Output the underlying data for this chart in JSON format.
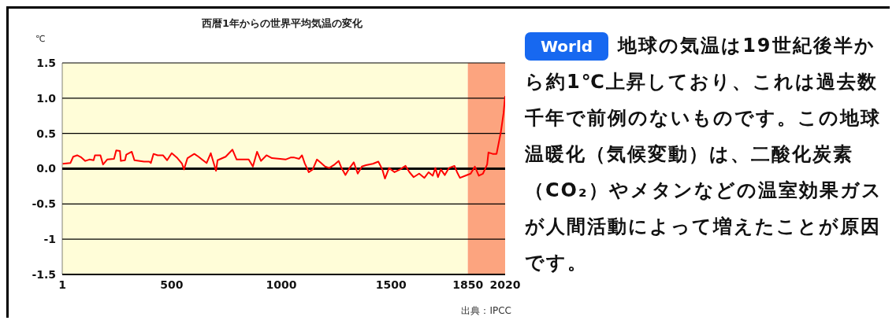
{
  "chart_data": [
    {
      "type": "line",
      "title": "西暦1年からの世界平均気温の変化",
      "ylabel": "℃",
      "xlim": [
        1,
        2020
      ],
      "xticks": [
        1,
        500,
        1000,
        1500,
        1850,
        2020
      ],
      "ylim": [
        -1.5,
        1.5
      ],
      "yticks": [
        {
          "value": -1.5,
          "label": "-1.5"
        },
        {
          "value": -1,
          "label": "-1"
        },
        {
          "value": -0.5,
          "label": "-0.5"
        },
        {
          "value": 0,
          "label": "0.0"
        },
        {
          "value": 0.5,
          "label": "0.5"
        },
        {
          "value": 1,
          "label": "1.0"
        },
        {
          "value": 1.5,
          "label": "1.5"
        }
      ],
      "grid": "y",
      "marker": "none",
      "line_style": "solid",
      "bands": [
        {
          "axis": "x",
          "from": 1,
          "to": 1850,
          "color": "#fffdd8"
        },
        {
          "axis": "x",
          "from": 1850,
          "to": 2020,
          "color": "#fca47f"
        }
      ],
      "ref_lines": [
        {
          "axis": "y",
          "value": 0,
          "color": "#000000"
        }
      ],
      "annotations": [
        "出典：IPCC"
      ],
      "series": [
        {
          "color": "#ff0000",
          "x": [
            3,
            38,
            51,
            69,
            88,
            106,
            125,
            144,
            150,
            175,
            187,
            206,
            237,
            247,
            264,
            268,
            287,
            293,
            318,
            330,
            374,
            398,
            405,
            417,
            436,
            460,
            479,
            500,
            523,
            547,
            556,
            572,
            603,
            622,
            659,
            678,
            702,
            709,
            746,
            777,
            796,
            851,
            870,
            889,
            907,
            932,
            957,
            994,
            1019,
            1044,
            1056,
            1081,
            1094,
            1106,
            1125,
            1143,
            1162,
            1181,
            1199,
            1218,
            1243,
            1261,
            1274,
            1292,
            1311,
            1330,
            1348,
            1367,
            1386,
            1417,
            1442,
            1460,
            1472,
            1491,
            1516,
            1541,
            1566,
            1584,
            1603,
            1628,
            1652,
            1671,
            1690,
            1702,
            1714,
            1727,
            1745,
            1764,
            1789,
            1801,
            1814,
            1838,
            1863,
            1882,
            1900,
            1919,
            1938,
            1944,
            1963,
            1981,
            2000,
            2013,
            2020
          ],
          "values": [
            0.07,
            0.08,
            0.17,
            0.19,
            0.16,
            0.11,
            0.13,
            0.12,
            0.19,
            0.19,
            0.06,
            0.13,
            0.14,
            0.26,
            0.25,
            0.11,
            0.12,
            0.2,
            0.24,
            0.12,
            0.1,
            0.1,
            0.08,
            0.21,
            0.19,
            0.19,
            0.12,
            0.22,
            0.16,
            0.07,
            -0.01,
            0.15,
            0.21,
            0.17,
            0.08,
            0.22,
            -0.03,
            0.12,
            0.17,
            0.27,
            0.13,
            0.13,
            0.03,
            0.24,
            0.11,
            0.19,
            0.15,
            0.14,
            0.13,
            0.16,
            0.16,
            0.14,
            0.19,
            0.08,
            -0.05,
            -0.01,
            0.13,
            0.08,
            0.03,
            0.01,
            0.06,
            0.11,
            0.01,
            -0.09,
            0.01,
            0.09,
            -0.07,
            0.03,
            0.05,
            0.07,
            0.1,
            -0.01,
            -0.14,
            0.01,
            -0.05,
            -0.01,
            0.04,
            -0.05,
            -0.12,
            -0.07,
            -0.13,
            -0.05,
            -0.1,
            0.01,
            -0.12,
            -0.01,
            -0.09,
            0.01,
            0.04,
            -0.05,
            -0.13,
            -0.1,
            -0.07,
            0.03,
            -0.1,
            -0.07,
            0.06,
            0.23,
            0.21,
            0.21,
            0.51,
            0.79,
            1.03
          ]
        }
      ]
    },
    {
      "type": "other",
      "title": "World",
      "annotations": [
        "地球の気温は19世紀後半から約1℃上昇しており、これは過去数千年で前例のないものです。この地球温暖化（気候変動）は、二酸化炭素（CO₂）やメタンなどの温室効果ガスが人間活動によって増えたことが原因です。"
      ]
    }
  ]
}
